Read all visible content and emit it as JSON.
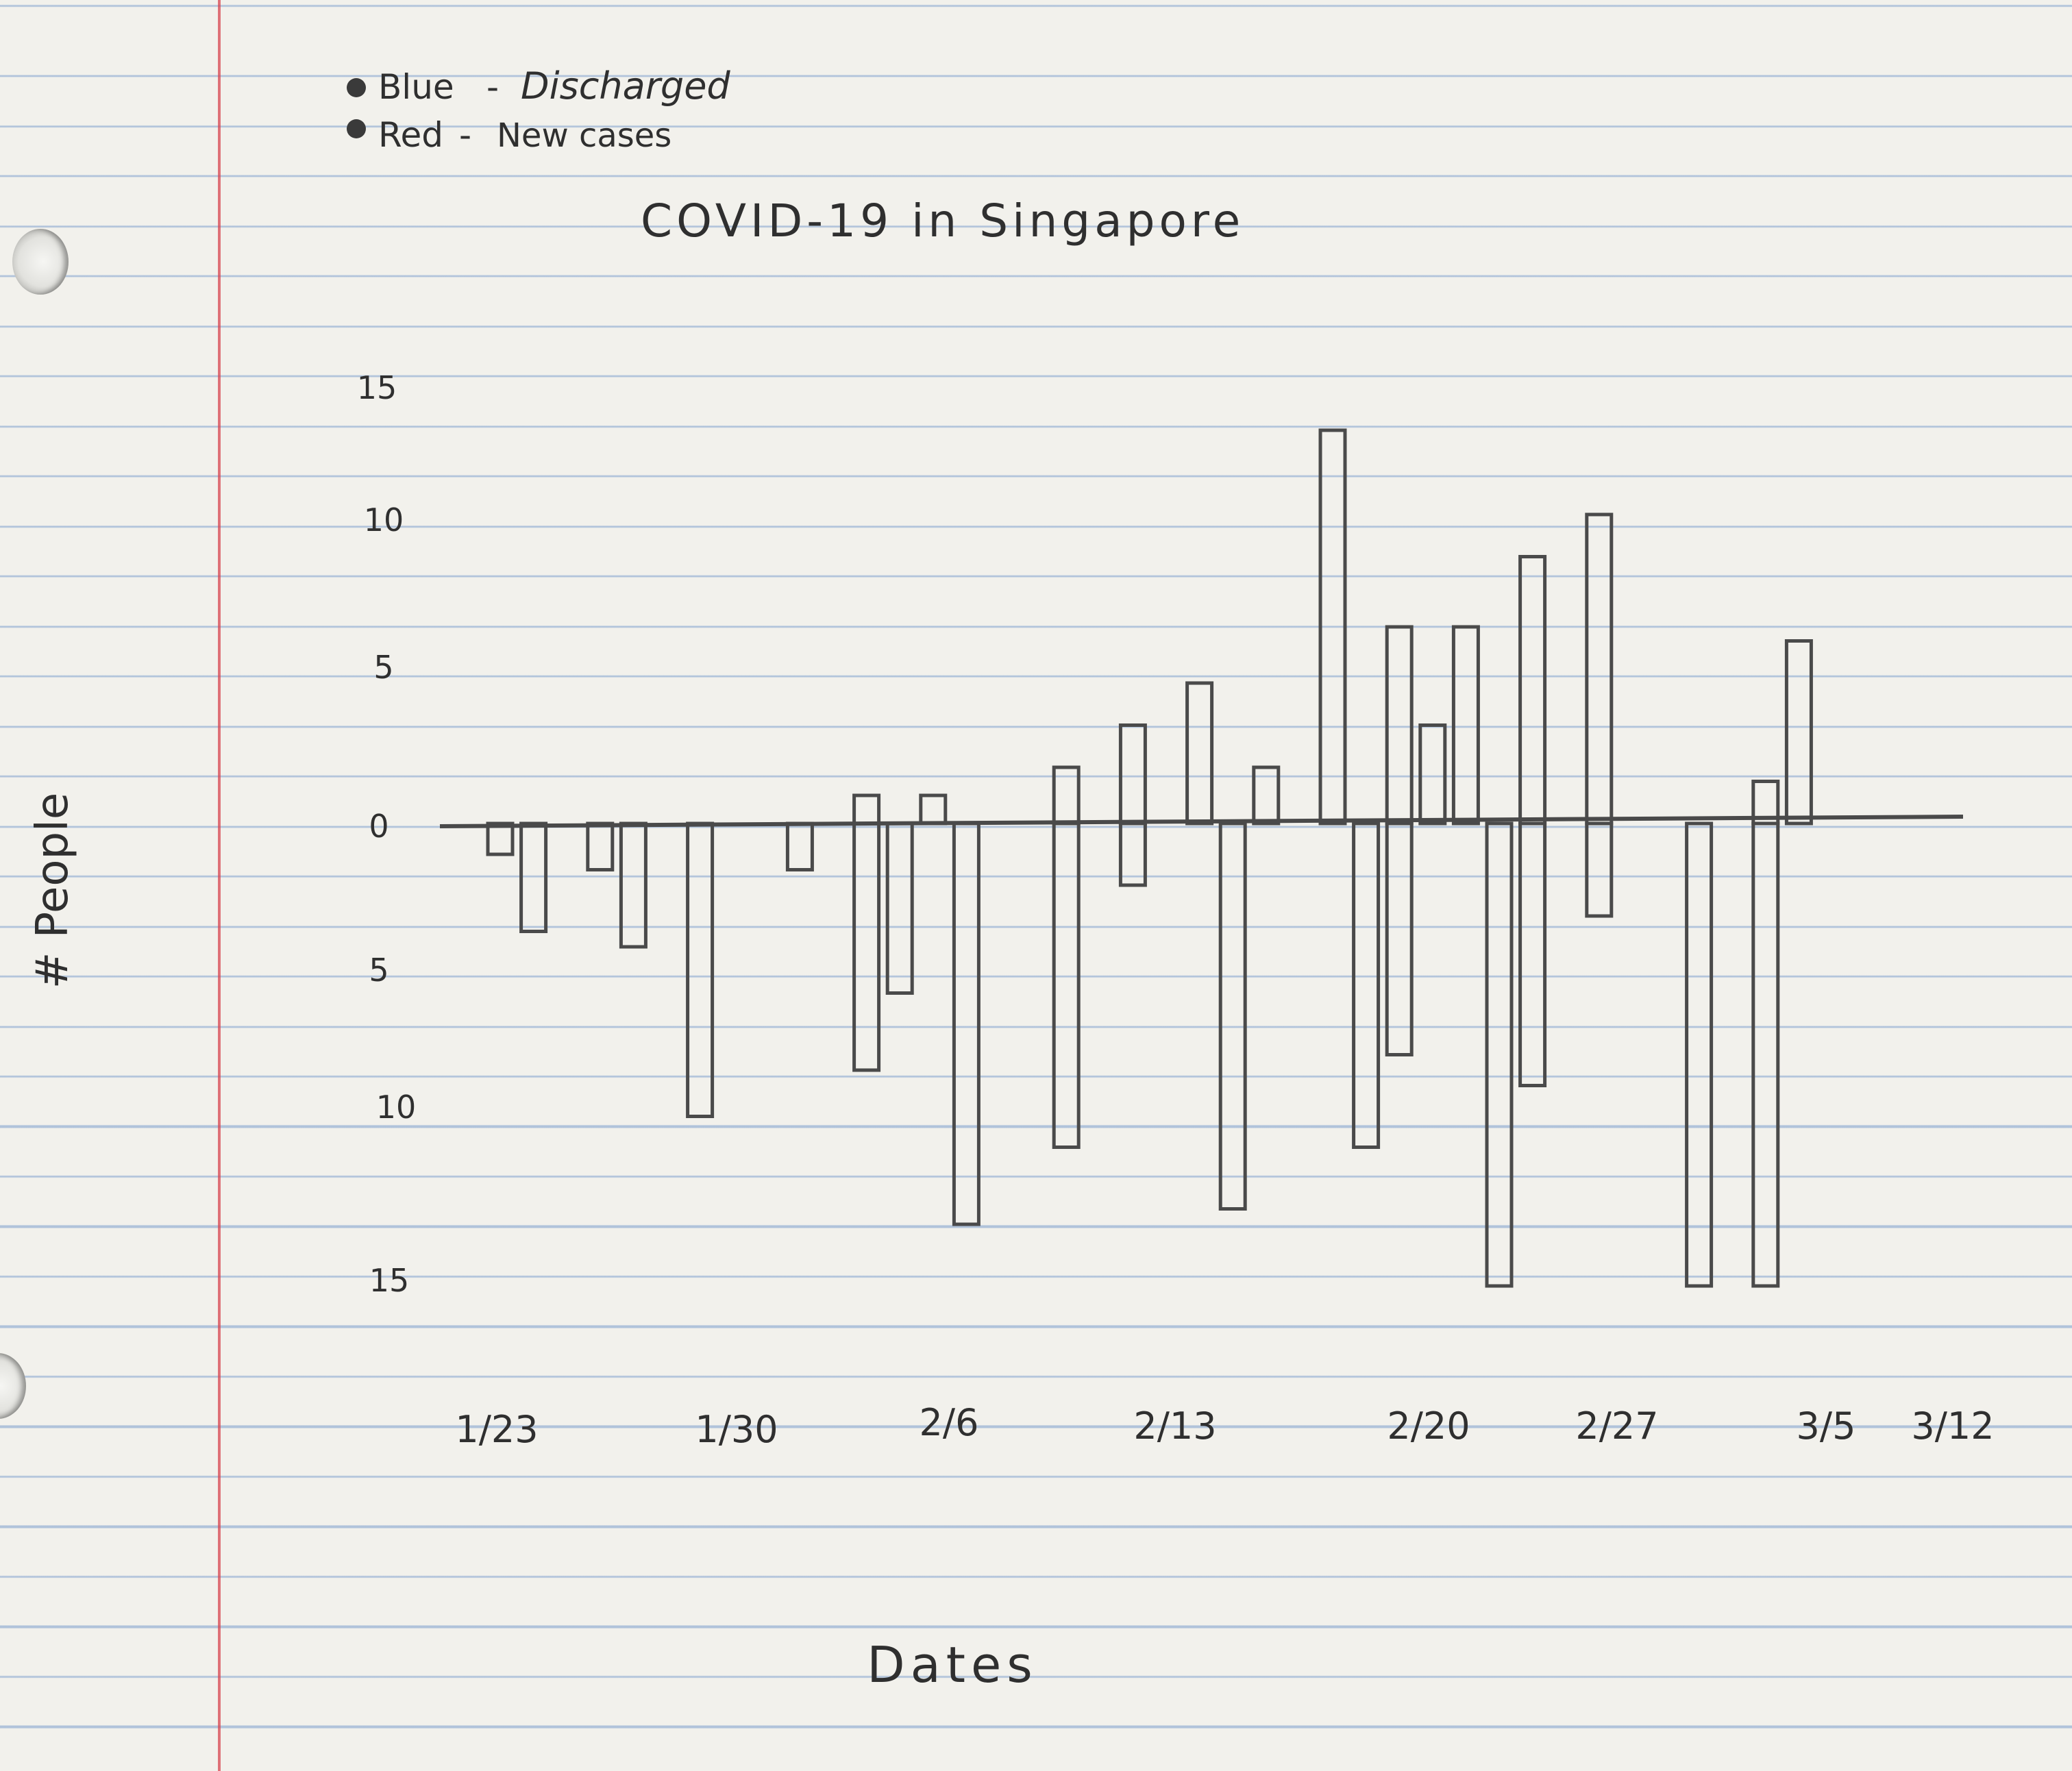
{
  "chart_data": {
    "type": "bar",
    "title": "COVID-19 in Singapore",
    "xlabel": "Dates",
    "ylabel": "# People",
    "legend": {
      "placement": "top-left",
      "entries": [
        {
          "swatch_label": "Blue",
          "label": "Discharged"
        },
        {
          "swatch_label": "Red",
          "label": "New cases"
        }
      ]
    },
    "x_tick_labels": [
      "1/23",
      "1/30",
      "2/6",
      "2/13",
      "2/20",
      "2/27",
      "3/5",
      "3/12"
    ],
    "y_tick_labels_up": [
      "0",
      "5",
      "10",
      "15"
    ],
    "y_tick_labels_down": [
      "5",
      "10",
      "15"
    ],
    "ylim_up": [
      0,
      15
    ],
    "ylim_down": [
      0,
      15
    ],
    "grid": false,
    "series": [
      {
        "name": "Discharged",
        "direction": "up",
        "points": [
          {
            "x": "2/3",
            "y": 1
          },
          {
            "x": "2/5",
            "y": 1
          },
          {
            "x": "2/9",
            "y": 2
          },
          {
            "x": "2/11",
            "y": 3.5
          },
          {
            "x": "2/13",
            "y": 5
          },
          {
            "x": "2/15",
            "y": 2
          },
          {
            "x": "2/17",
            "y": 14
          },
          {
            "x": "2/19",
            "y": 7
          },
          {
            "x": "2/20",
            "y": 3.5
          },
          {
            "x": "2/21",
            "y": 7
          },
          {
            "x": "2/23",
            "y": 9.5
          },
          {
            "x": "2/25",
            "y": 11
          },
          {
            "x": "3/1",
            "y": 1.5
          },
          {
            "x": "3/2",
            "y": 6.5
          }
        ]
      },
      {
        "name": "New cases",
        "direction": "down",
        "points": [
          {
            "x": "1/23",
            "y": 1
          },
          {
            "x": "1/24",
            "y": 3.5
          },
          {
            "x": "1/26",
            "y": 1.5
          },
          {
            "x": "1/27",
            "y": 4
          },
          {
            "x": "1/29",
            "y": 9.5
          },
          {
            "x": "2/1",
            "y": 1.5
          },
          {
            "x": "2/3",
            "y": 8
          },
          {
            "x": "2/4",
            "y": 5.5
          },
          {
            "x": "2/6",
            "y": 13
          },
          {
            "x": "2/9",
            "y": 10.5
          },
          {
            "x": "2/11",
            "y": 2
          },
          {
            "x": "2/14",
            "y": 12.5
          },
          {
            "x": "2/18",
            "y": 10.5
          },
          {
            "x": "2/19",
            "y": 7.5
          },
          {
            "x": "2/22",
            "y": 15
          },
          {
            "x": "2/23",
            "y": 8.5
          },
          {
            "x": "2/25",
            "y": 3
          },
          {
            "x": "2/28",
            "y": 15
          },
          {
            "x": "3/1",
            "y": 15
          }
        ]
      }
    ]
  }
}
